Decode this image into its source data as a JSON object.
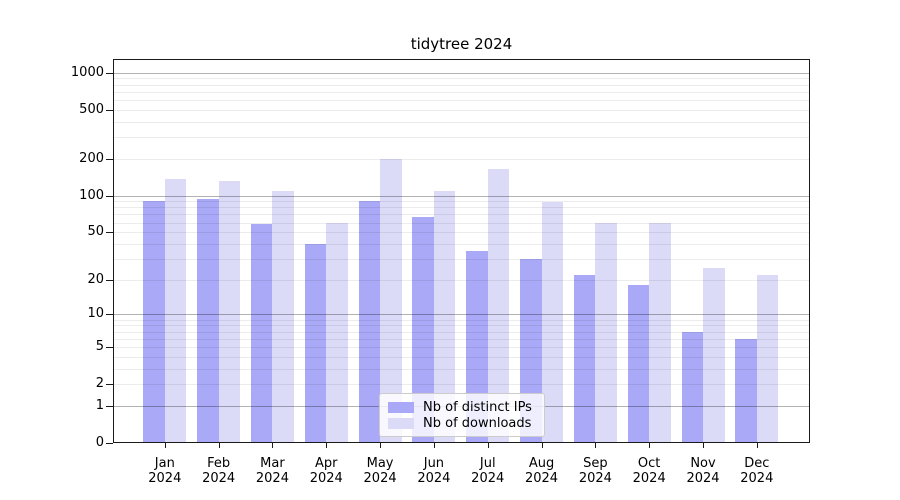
{
  "chart_data": {
    "type": "bar",
    "title": "tidytree 2024",
    "categories": [
      "Jan",
      "Feb",
      "Mar",
      "Apr",
      "May",
      "Jun",
      "Jul",
      "Aug",
      "Sep",
      "Oct",
      "Nov",
      "Dec"
    ],
    "category_year": "2024",
    "series": [
      {
        "name": "Nb of distinct IPs",
        "color": "#a9a9f8",
        "values": [
          91,
          94,
          58,
          40,
          90,
          67,
          35,
          30,
          22,
          18,
          7,
          6
        ]
      },
      {
        "name": "Nb of downloads",
        "color": "#dbdbf8",
        "values": [
          136,
          132,
          110,
          60,
          199,
          110,
          165,
          88,
          60,
          60,
          25,
          22
        ]
      }
    ],
    "y_scale": "log1p",
    "y_ticks": [
      0,
      1,
      2,
      5,
      10,
      20,
      50,
      100,
      200,
      500,
      1000
    ],
    "y_major_gridlines": [
      1,
      10,
      100,
      1000
    ],
    "ylim": [
      0,
      1290
    ],
    "grid": true,
    "legend_position": "lower center inside plot",
    "accent_colors": {
      "distinct_ips": "#a9a9f8",
      "downloads": "#dbdbf8"
    }
  }
}
